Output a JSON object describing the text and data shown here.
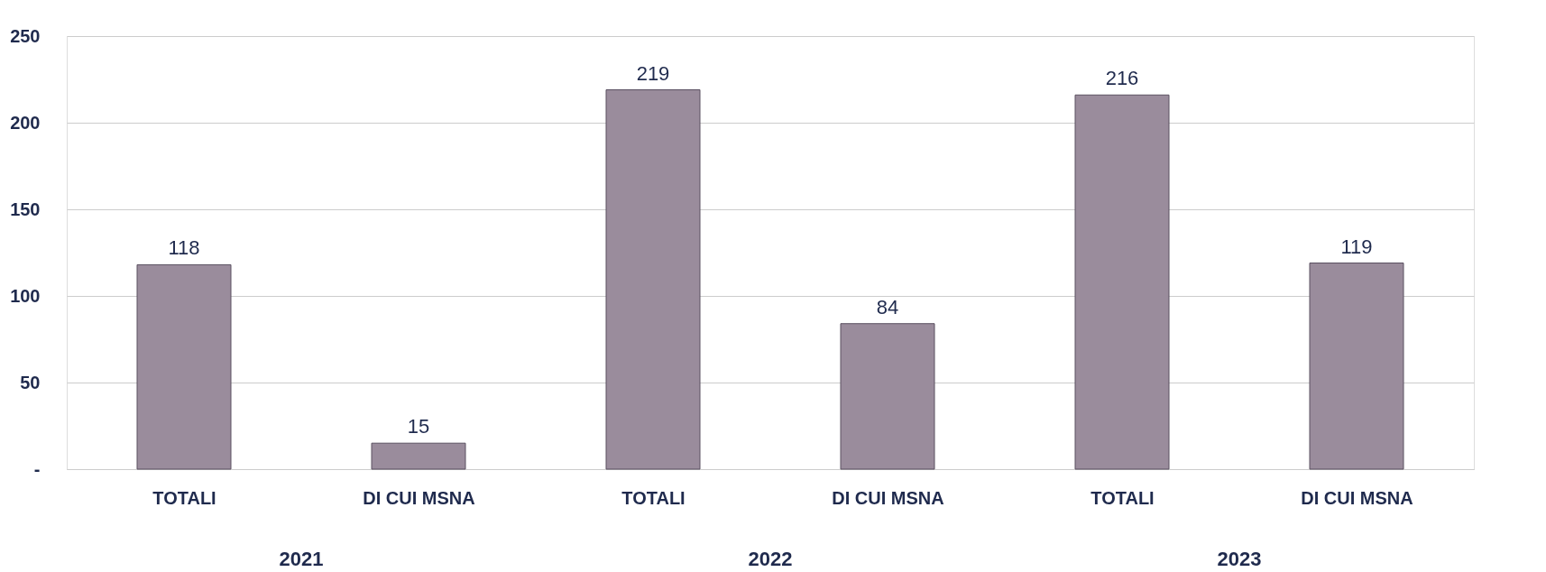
{
  "chart_data": {
    "type": "bar",
    "categories": [
      "TOTALI",
      "DI CUI MSNA",
      "TOTALI",
      "DI CUI MSNA",
      "TOTALI",
      "DI CUI MSNA"
    ],
    "values": [
      118,
      15,
      219,
      84,
      216,
      119
    ],
    "color": "#9a8c9c",
    "ylim": [
      0,
      250
    ],
    "yticks": [
      {
        "value": 0,
        "label": "-"
      },
      50,
      100,
      150,
      200,
      250
    ],
    "grid": "y",
    "data_labels": true,
    "annotations": [
      "2021",
      "2022",
      "2023"
    ]
  }
}
